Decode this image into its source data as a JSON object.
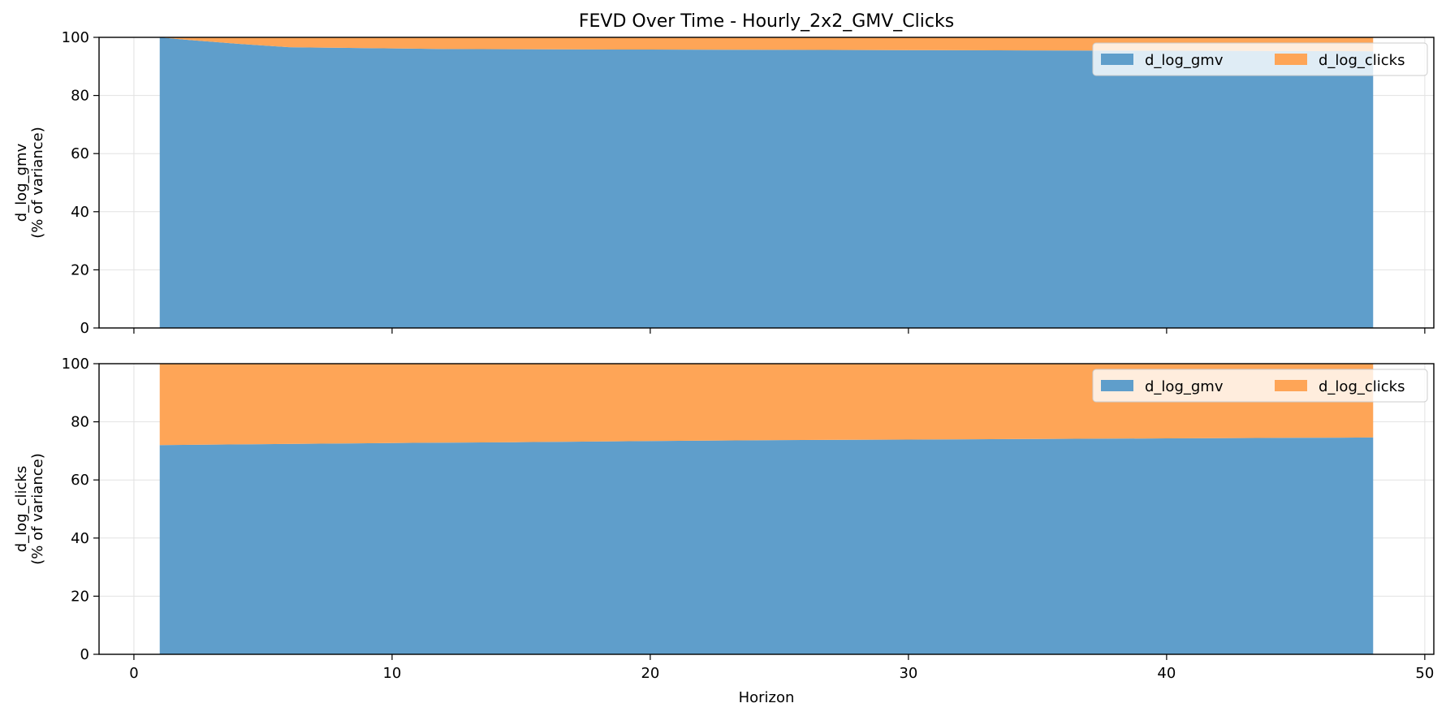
{
  "title": "FEVD Over Time - Hourly_2x2_GMV_Clicks",
  "xlabel": "Horizon",
  "colors": {
    "d_log_gmv": "#5f9ecb",
    "d_log_clicks": "#fea557",
    "grid": "#e2e2e2",
    "axis": "#000000"
  },
  "chart_data": [
    {
      "type": "area",
      "stacked": true,
      "ylabel": [
        "d_log_gmv",
        "(% of variance)"
      ],
      "xlim": [
        -1.35,
        50.35
      ],
      "ylim": [
        0,
        100
      ],
      "xticks": [
        0,
        10,
        20,
        30,
        40,
        50
      ],
      "yticks": [
        0,
        20,
        40,
        60,
        80,
        100
      ],
      "show_x_tick_labels": false,
      "grid": true,
      "legend": {
        "placement": "top-right",
        "columns": 2,
        "entries": [
          "d_log_gmv",
          "d_log_clicks"
        ]
      },
      "x": [
        1,
        2,
        3,
        4,
        5,
        6,
        8,
        10,
        12,
        15,
        20,
        25,
        30,
        35,
        40,
        45,
        48
      ],
      "series": [
        {
          "name": "d_log_gmv",
          "values": [
            100,
            99.2,
            98.5,
            97.8,
            97.2,
            96.6,
            96.4,
            96.2,
            96.0,
            95.9,
            95.8,
            95.7,
            95.6,
            95.5,
            95.4,
            95.3,
            95.2
          ]
        },
        {
          "name": "d_log_clicks",
          "values": [
            0,
            0.8,
            1.5,
            2.2,
            2.8,
            3.4,
            3.6,
            3.8,
            4.0,
            4.1,
            4.2,
            4.3,
            4.4,
            4.5,
            4.6,
            4.7,
            4.8
          ]
        }
      ]
    },
    {
      "type": "area",
      "stacked": true,
      "ylabel": [
        "d_log_clicks",
        "(% of variance)"
      ],
      "xlim": [
        -1.35,
        50.35
      ],
      "ylim": [
        0,
        100
      ],
      "xticks": [
        0,
        10,
        20,
        30,
        40,
        50
      ],
      "yticks": [
        0,
        20,
        40,
        60,
        80,
        100
      ],
      "show_x_tick_labels": true,
      "grid": true,
      "legend": {
        "placement": "top-right",
        "columns": 2,
        "entries": [
          "d_log_gmv",
          "d_log_clicks"
        ]
      },
      "x": [
        1,
        5,
        10,
        15,
        20,
        25,
        30,
        35,
        40,
        45,
        48
      ],
      "series": [
        {
          "name": "d_log_gmv",
          "values": [
            72.0,
            72.3,
            72.7,
            73.0,
            73.4,
            73.7,
            73.9,
            74.1,
            74.3,
            74.5,
            74.6
          ]
        },
        {
          "name": "d_log_clicks",
          "values": [
            28.0,
            27.7,
            27.3,
            27.0,
            26.6,
            26.3,
            26.1,
            25.9,
            25.7,
            25.5,
            25.4
          ]
        }
      ]
    }
  ]
}
